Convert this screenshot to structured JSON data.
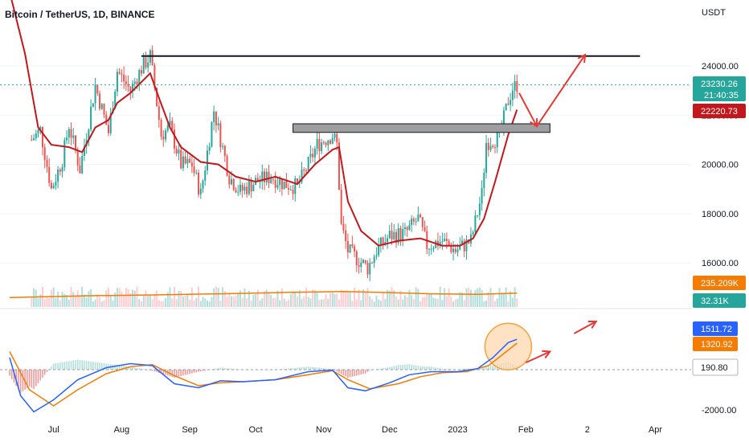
{
  "header": {
    "symbol_title": "Bitcoin / TetherUS, 1D, BINANCE",
    "currency": "USDT"
  },
  "colors": {
    "up": "#26a69a",
    "down": "#ef5350",
    "ema": "#c2181d",
    "volume_ma": "#f57c00",
    "macd": "#2962ff",
    "signal": "#f57c00",
    "arrow": "#e53935",
    "circle_fill": "#ffd8b0",
    "circle_stroke": "#f5a33a"
  },
  "price_tags": {
    "last_price": "23230.26",
    "countdown": "21:40:35",
    "ema_value": "22220.73",
    "volume_ma_value": "235.209K",
    "volume_value": "32.31K",
    "macd_value": "1511.72",
    "signal_value": "1320.92",
    "hist_value": "190.80"
  },
  "chart_data": [
    {
      "type": "candlestick",
      "title": "Bitcoin / TetherUS, 1D, BINANCE",
      "ylabel": "USDT",
      "y_ticks": [
        "24000.00",
        "22000.00",
        "20000.00",
        "18000.00",
        "16000.00"
      ],
      "x_ticks": [
        "Jul",
        "Aug",
        "Sep",
        "Oct",
        "Nov",
        "Dec",
        "2023",
        "Feb",
        "2",
        "Apr"
      ],
      "ylim": [
        14300,
        26000
      ],
      "close_anchors": [
        [
          "2022-06-21",
          21000
        ],
        [
          "2022-06-25",
          21400
        ],
        [
          "2022-06-30",
          19000
        ],
        [
          "2022-07-05",
          20200
        ],
        [
          "2022-07-08",
          21600
        ],
        [
          "2022-07-13",
          19800
        ],
        [
          "2022-07-20",
          23200
        ],
        [
          "2022-07-26",
          21300
        ],
        [
          "2022-07-30",
          23800
        ],
        [
          "2022-08-05",
          23000
        ],
        [
          "2022-08-10",
          23900
        ],
        [
          "2022-08-14",
          24400
        ],
        [
          "2022-08-19",
          21200
        ],
        [
          "2022-08-23",
          21500
        ],
        [
          "2022-08-28",
          20000
        ],
        [
          "2022-09-02",
          20000
        ],
        [
          "2022-09-06",
          18800
        ],
        [
          "2022-09-12",
          22200
        ],
        [
          "2022-09-19",
          19500
        ],
        [
          "2022-09-24",
          18900
        ],
        [
          "2022-10-01",
          19300
        ],
        [
          "2022-10-08",
          19500
        ],
        [
          "2022-10-14",
          19200
        ],
        [
          "2022-10-20",
          19100
        ],
        [
          "2022-10-25",
          20000
        ],
        [
          "2022-10-29",
          20800
        ],
        [
          "2022-11-05",
          21200
        ],
        [
          "2022-11-07",
          20800
        ],
        [
          "2022-11-09",
          17500
        ],
        [
          "2022-11-12",
          16500
        ],
        [
          "2022-11-21",
          15800
        ],
        [
          "2022-11-25",
          16500
        ],
        [
          "2022-12-01",
          17100
        ],
        [
          "2022-12-08",
          17200
        ],
        [
          "2022-12-14",
          17800
        ],
        [
          "2022-12-18",
          16700
        ],
        [
          "2022-12-25",
          16900
        ],
        [
          "2022-12-31",
          16500
        ],
        [
          "2023-01-07",
          16900
        ],
        [
          "2023-01-12",
          18800
        ],
        [
          "2023-01-14",
          20900
        ],
        [
          "2023-01-20",
          21100
        ],
        [
          "2023-01-24",
          22600
        ],
        [
          "2023-01-26",
          23100
        ],
        [
          "2023-01-28",
          23230
        ]
      ],
      "ema_anchors": [
        [
          "2022-06-11",
          27000
        ],
        [
          "2022-06-18",
          24500
        ],
        [
          "2022-06-24",
          21500
        ],
        [
          "2022-06-30",
          20800
        ],
        [
          "2022-07-08",
          20700
        ],
        [
          "2022-07-14",
          20500
        ],
        [
          "2022-07-20",
          21500
        ],
        [
          "2022-07-26",
          21800
        ],
        [
          "2022-07-30",
          22500
        ],
        [
          "2022-08-05",
          22900
        ],
        [
          "2022-08-14",
          23700
        ],
        [
          "2022-08-18",
          22700
        ],
        [
          "2022-08-23",
          21500
        ],
        [
          "2022-08-28",
          20700
        ],
        [
          "2022-09-06",
          20100
        ],
        [
          "2022-09-14",
          20000
        ],
        [
          "2022-09-22",
          19500
        ],
        [
          "2022-10-01",
          19300
        ],
        [
          "2022-10-10",
          19500
        ],
        [
          "2022-10-20",
          19200
        ],
        [
          "2022-10-28",
          20000
        ],
        [
          "2022-11-05",
          20600
        ],
        [
          "2022-11-08",
          20700
        ],
        [
          "2022-11-12",
          18500
        ],
        [
          "2022-11-18",
          17300
        ],
        [
          "2022-11-26",
          16700
        ],
        [
          "2022-12-05",
          16900
        ],
        [
          "2022-12-15",
          17000
        ],
        [
          "2022-12-25",
          16700
        ],
        [
          "2023-01-02",
          16700
        ],
        [
          "2023-01-08",
          17000
        ],
        [
          "2023-01-13",
          17800
        ],
        [
          "2023-01-18",
          19300
        ],
        [
          "2023-01-24",
          21200
        ],
        [
          "2023-01-28",
          22221
        ]
      ],
      "resistance_level": 24400,
      "support_zone": [
        21300,
        21650
      ],
      "support_zone_dates": [
        "2022-10-18",
        "2023-02-12"
      ],
      "resistance_dates": [
        "2022-08-10",
        "2023-03-25"
      ],
      "annotation_arrows": [
        [
          [
            "2023-01-29",
            22900
          ],
          [
            "2023-02-06",
            21550
          ]
        ],
        [
          [
            "2023-02-06",
            21550
          ],
          [
            "2023-02-28",
            24450
          ]
        ]
      ]
    },
    {
      "type": "bar",
      "title": "Volume",
      "volume_ma_anchors": [
        [
          "2022-06-11",
          160
        ],
        [
          "2022-07-15",
          190
        ],
        [
          "2022-08-15",
          205
        ],
        [
          "2022-09-15",
          225
        ],
        [
          "2022-10-15",
          248
        ],
        [
          "2022-11-10",
          265
        ],
        [
          "2022-12-01",
          245
        ],
        [
          "2022-12-20",
          225
        ],
        [
          "2023-01-10",
          215
        ],
        [
          "2023-01-28",
          235
        ]
      ]
    },
    {
      "type": "line",
      "title": "MACD",
      "y_ticks": [
        "-2000.00"
      ],
      "series": [
        {
          "role": "macd",
          "anchors": [
            [
              "2022-06-11",
              600
            ],
            [
              "2022-06-16",
              -1300
            ],
            [
              "2022-06-22",
              -2100
            ],
            [
              "2022-07-01",
              -1500
            ],
            [
              "2022-07-12",
              -500
            ],
            [
              "2022-07-25",
              100
            ],
            [
              "2022-08-05",
              300
            ],
            [
              "2022-08-15",
              200
            ],
            [
              "2022-08-25",
              -700
            ],
            [
              "2022-09-05",
              -900
            ],
            [
              "2022-09-15",
              -550
            ],
            [
              "2022-09-25",
              -600
            ],
            [
              "2022-10-10",
              -500
            ],
            [
              "2022-10-25",
              -100
            ],
            [
              "2022-11-05",
              -20
            ],
            [
              "2022-11-12",
              -900
            ],
            [
              "2022-11-20",
              -1050
            ],
            [
              "2022-12-01",
              -650
            ],
            [
              "2022-12-10",
              -250
            ],
            [
              "2022-12-20",
              -100
            ],
            [
              "2023-01-01",
              -100
            ],
            [
              "2023-01-10",
              50
            ],
            [
              "2023-01-17",
              600
            ],
            [
              "2023-01-24",
              1350
            ],
            [
              "2023-01-28",
              1511.72
            ]
          ]
        },
        {
          "role": "signal",
          "anchors": [
            [
              "2022-06-11",
              900
            ],
            [
              "2022-06-20",
              -1000
            ],
            [
              "2022-07-01",
              -1800
            ],
            [
              "2022-07-12",
              -1000
            ],
            [
              "2022-07-25",
              -200
            ],
            [
              "2022-08-05",
              150
            ],
            [
              "2022-08-15",
              250
            ],
            [
              "2022-08-25",
              -300
            ],
            [
              "2022-09-05",
              -800
            ],
            [
              "2022-09-15",
              -650
            ],
            [
              "2022-09-25",
              -600
            ],
            [
              "2022-10-10",
              -500
            ],
            [
              "2022-10-25",
              -250
            ],
            [
              "2022-11-05",
              -50
            ],
            [
              "2022-11-12",
              -500
            ],
            [
              "2022-11-22",
              -950
            ],
            [
              "2022-12-05",
              -700
            ],
            [
              "2022-12-15",
              -350
            ],
            [
              "2022-12-25",
              -150
            ],
            [
              "2023-01-05",
              -100
            ],
            [
              "2023-01-15",
              200
            ],
            [
              "2023-01-22",
              800
            ],
            [
              "2023-01-28",
              1320.92
            ]
          ]
        }
      ],
      "annotation_arrows": [
        [
          [
            "2023-02-01",
            350
          ],
          [
            "2023-02-12",
            900
          ]
        ],
        [
          [
            "2023-02-23",
            1800
          ],
          [
            "2023-03-05",
            2400
          ]
        ]
      ],
      "highlight_center": [
        "2023-01-24",
        1150
      ]
    }
  ]
}
